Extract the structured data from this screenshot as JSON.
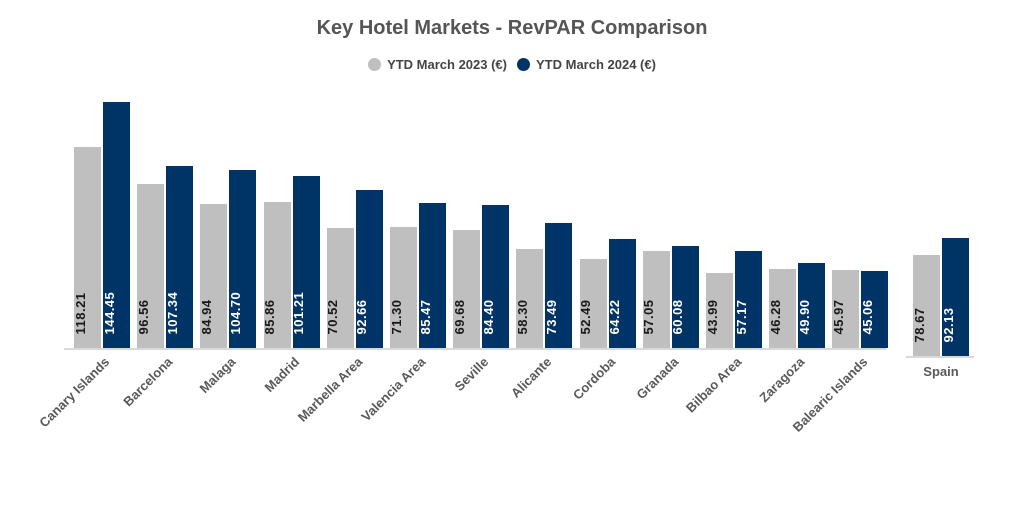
{
  "header": {
    "title": "Key Hotel Markets - RevPAR Comparison"
  },
  "legend": [
    {
      "label": "YTD March 2023 (€)",
      "color": "#bfbfbf"
    },
    {
      "label": "YTD March 2024 (€)",
      "color": "#003366"
    }
  ],
  "chart_data": {
    "type": "bar",
    "title": "Key Hotel Markets - RevPAR Comparison",
    "xlabel": "",
    "ylabel": "",
    "grid": false,
    "legend_position": "top",
    "categories": [
      "Canary Islands",
      "Barcelona",
      "Malaga",
      "Madrid",
      "Marbella Area",
      "Valencia Area",
      "Seville",
      "Alicante",
      "Cordoba",
      "Granada",
      "Bilbao Area",
      "Zaragoza",
      "Balearic Islands",
      "Spain"
    ],
    "series": [
      {
        "name": "YTD March 2023 (€)",
        "color": "#bfbfbf",
        "values": [
          118.21,
          96.56,
          84.94,
          85.86,
          70.52,
          71.3,
          69.68,
          58.3,
          52.49,
          57.05,
          43.99,
          46.28,
          45.97,
          78.67
        ]
      },
      {
        "name": "YTD March 2024 (€)",
        "color": "#003366",
        "values": [
          144.45,
          107.34,
          104.7,
          101.21,
          92.66,
          85.47,
          84.4,
          73.49,
          64.22,
          60.08,
          57.17,
          49.9,
          45.06,
          92.13
        ]
      }
    ],
    "notes": "Spain shown as a separate group on its own axis to the right"
  }
}
